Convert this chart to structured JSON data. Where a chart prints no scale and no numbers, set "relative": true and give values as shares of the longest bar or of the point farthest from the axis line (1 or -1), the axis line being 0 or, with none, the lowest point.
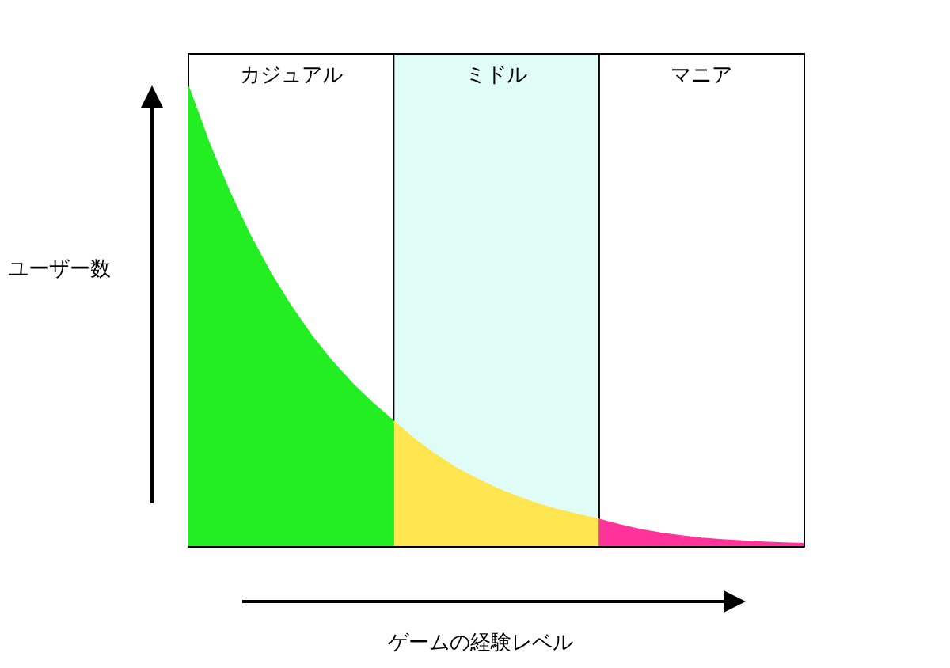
{
  "chart_data": {
    "type": "area",
    "xlabel": "ゲームの経験レベル",
    "ylabel": "ユーザー数",
    "relative": true,
    "annotations": [
      "カジュアル",
      "ミドル",
      "マニア"
    ],
    "categories": [
      null,
      null,
      null,
      null,
      null,
      null,
      null,
      null,
      null,
      null,
      null,
      null,
      null,
      null,
      null,
      null,
      null,
      null,
      null,
      null,
      null,
      null,
      null,
      null,
      null,
      null,
      null,
      null,
      null,
      null,
      null
    ],
    "series": [
      {
        "color": "#22ee22",
        "values": [
          1,
          0.878,
          0.771,
          0.677,
          0.594,
          0.522,
          0.458,
          0.402,
          0.353,
          0.31,
          0.272,
          null,
          null,
          null,
          null,
          null,
          null,
          null,
          null,
          null,
          null,
          null,
          null,
          null,
          null,
          null,
          null,
          null,
          null,
          null,
          null
        ]
      },
      {
        "color": "#ffe650",
        "values": [
          null,
          null,
          null,
          null,
          null,
          null,
          null,
          null,
          null,
          null,
          0.272,
          0.233,
          0.2,
          0.171,
          0.147,
          0.126,
          0.108,
          0.092,
          0.079,
          0.068,
          0.058,
          null,
          null,
          null,
          null,
          null,
          null,
          null,
          null,
          null,
          null
        ]
      },
      {
        "color": "#ff3399",
        "values": [
          null,
          null,
          null,
          null,
          null,
          null,
          null,
          null,
          null,
          null,
          null,
          null,
          null,
          null,
          null,
          null,
          null,
          null,
          null,
          null,
          0.058,
          0.046,
          0.036,
          0.028,
          0.022,
          0.017,
          0.0135,
          0.0106,
          0.0083,
          0.0065,
          0.005
        ]
      }
    ]
  }
}
